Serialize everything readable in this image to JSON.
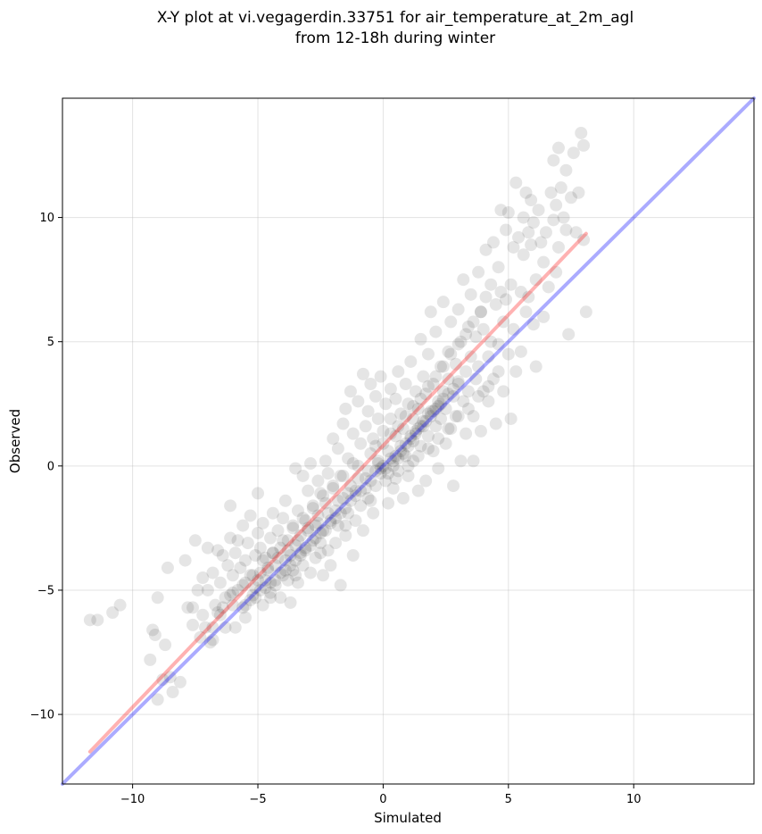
{
  "chart_data": {
    "type": "scatter",
    "title_lines": [
      "X-Y plot at vi.vegagerdin.33751 for air_temperature_at_2m_agl",
      "from 12-18h during winter"
    ],
    "xlabel": "Simulated",
    "ylabel": "Observed",
    "xlim": [
      -12.8,
      14.8
    ],
    "ylim": [
      -12.8,
      14.8
    ],
    "xticks": [
      -10,
      -5,
      0,
      5,
      10
    ],
    "yticks": [
      -10,
      -5,
      0,
      5,
      10
    ],
    "xtick_labels": [
      "−10",
      "−5",
      "0",
      "5",
      "10"
    ],
    "ytick_labels": [
      "−10",
      "−5",
      "0",
      "5",
      "10"
    ],
    "grid": true,
    "point_color": "#000000",
    "point_opacity": 0.1,
    "lines": [
      {
        "role": "regression",
        "color": "#ff0000",
        "opacity": 0.3,
        "x": [
          -11.7,
          8.1
        ],
        "y": [
          -11.5,
          9.35
        ]
      },
      {
        "role": "one-to-one",
        "color": "#0000ff",
        "opacity": 0.33,
        "x": [
          -12.8,
          14.8
        ],
        "y": [
          -12.8,
          14.8
        ]
      }
    ],
    "points": [
      [
        -11.7,
        -6.2
      ],
      [
        -11.4,
        -6.2
      ],
      [
        -10.8,
        -5.9
      ],
      [
        -10.5,
        -5.6
      ],
      [
        -9.3,
        -7.8
      ],
      [
        -9.2,
        -6.6
      ],
      [
        -9.1,
        -6.8
      ],
      [
        -9.0,
        -5.3
      ],
      [
        -9.0,
        -9.4
      ],
      [
        -8.8,
        -8.6
      ],
      [
        -8.7,
        -7.2
      ],
      [
        -8.6,
        -4.1
      ],
      [
        -8.5,
        -8.5
      ],
      [
        -8.4,
        -9.1
      ],
      [
        -8.1,
        -8.7
      ],
      [
        -7.9,
        -3.8
      ],
      [
        -7.8,
        -5.7
      ],
      [
        -7.6,
        -6.4
      ],
      [
        -7.6,
        -5.7
      ],
      [
        -7.5,
        -3.0
      ],
      [
        -7.4,
        -5.0
      ],
      [
        -7.3,
        -6.9
      ],
      [
        -7.2,
        -4.5
      ],
      [
        -7.2,
        -6.0
      ],
      [
        -7.0,
        -3.3
      ],
      [
        -7.0,
        -5.0
      ],
      [
        -6.9,
        -7.1
      ],
      [
        -6.8,
        -6.5
      ],
      [
        -6.8,
        -4.3
      ],
      [
        -6.7,
        -5.6
      ],
      [
        -6.6,
        -3.4
      ],
      [
        -6.5,
        -6.0
      ],
      [
        -6.5,
        -4.7
      ],
      [
        -6.4,
        -3.6
      ],
      [
        -6.3,
        -5.3
      ],
      [
        -6.2,
        -4.0
      ],
      [
        -6.1,
        -2.9
      ],
      [
        -6.1,
        -1.6
      ],
      [
        -6.0,
        -5.6
      ],
      [
        -6.0,
        -4.4
      ],
      [
        -5.9,
        -3.5
      ],
      [
        -5.9,
        -6.5
      ],
      [
        -5.8,
        -3.0
      ],
      [
        -5.8,
        -5.0
      ],
      [
        -5.7,
        -4.1
      ],
      [
        -5.6,
        -2.4
      ],
      [
        -5.6,
        -5.7
      ],
      [
        -5.5,
        -3.8
      ],
      [
        -5.5,
        -4.7
      ],
      [
        -5.4,
        -3.1
      ],
      [
        -5.3,
        -4.4
      ],
      [
        -5.3,
        -2.0
      ],
      [
        -5.2,
        -5.2
      ],
      [
        -5.1,
        -3.6
      ],
      [
        -5.1,
        -4.9
      ],
      [
        -5.0,
        -2.7
      ],
      [
        -5.0,
        -1.1
      ],
      [
        -4.9,
        -4.3
      ],
      [
        -4.9,
        -3.3
      ],
      [
        -4.8,
        -5.6
      ],
      [
        -4.8,
        -2.3
      ],
      [
        -4.7,
        -4.6
      ],
      [
        -4.7,
        -3.7
      ],
      [
        -4.6,
        -4.1
      ],
      [
        -4.5,
        -2.9
      ],
      [
        -4.5,
        -5.1
      ],
      [
        -4.4,
        -3.5
      ],
      [
        -4.4,
        -1.9
      ],
      [
        -4.3,
        -4.8
      ],
      [
        -4.3,
        -4.0
      ],
      [
        -4.2,
        -2.6
      ],
      [
        -4.1,
        -3.3
      ],
      [
        -4.1,
        -5.3
      ],
      [
        -4.0,
        -4.4
      ],
      [
        -4.0,
        -2.1
      ],
      [
        -3.9,
        -3.8
      ],
      [
        -3.9,
        -1.4
      ],
      [
        -3.8,
        -4.6
      ],
      [
        -3.8,
        -3.0
      ],
      [
        -3.7,
        -3.6
      ],
      [
        -3.7,
        -5.5
      ],
      [
        -3.6,
        -2.4
      ],
      [
        -3.6,
        -4.2
      ],
      [
        -3.5,
        -0.1
      ],
      [
        -3.5,
        -3.2
      ],
      [
        -3.4,
        -4.7
      ],
      [
        -3.4,
        -1.8
      ],
      [
        -3.3,
        -3.5
      ],
      [
        -3.3,
        -2.8
      ],
      [
        -3.2,
        -0.4
      ],
      [
        -3.2,
        -4.0
      ],
      [
        -3.1,
        -2.2
      ],
      [
        -3.1,
        -3.3
      ],
      [
        -3.0,
        -1.0
      ],
      [
        -3.0,
        -2.6
      ],
      [
        -2.9,
        0.1
      ],
      [
        -2.9,
        -4.3
      ],
      [
        -2.8,
        -3.0
      ],
      [
        -2.8,
        -1.6
      ],
      [
        -2.7,
        -2.4
      ],
      [
        -2.7,
        -3.7
      ],
      [
        -2.6,
        -0.6
      ],
      [
        -2.6,
        -2.0
      ],
      [
        -2.5,
        -3.1
      ],
      [
        -2.5,
        -1.1
      ],
      [
        -2.4,
        -4.4
      ],
      [
        -2.4,
        -2.6
      ],
      [
        -2.3,
        0.2
      ],
      [
        -2.3,
        -1.5
      ],
      [
        -2.2,
        -3.4
      ],
      [
        -2.2,
        -0.3
      ],
      [
        -2.1,
        -2.2
      ],
      [
        -2.1,
        -4.0
      ],
      [
        -2.0,
        -0.9
      ],
      [
        -2.0,
        1.1
      ],
      [
        -1.9,
        -1.8
      ],
      [
        -1.9,
        -3.1
      ],
      [
        -1.8,
        0.7
      ],
      [
        -1.8,
        -2.4
      ],
      [
        -1.7,
        -4.8
      ],
      [
        -1.7,
        -0.4
      ],
      [
        -1.6,
        1.7
      ],
      [
        -1.6,
        -1.3
      ],
      [
        -1.5,
        -2.8
      ],
      [
        -1.5,
        2.3
      ],
      [
        -1.4,
        0.3
      ],
      [
        -1.4,
        -1.9
      ],
      [
        -1.3,
        -0.8
      ],
      [
        -1.3,
        3.0
      ],
      [
        -1.2,
        -3.6
      ],
      [
        -1.2,
        1.3
      ],
      [
        -1.1,
        -1.0
      ],
      [
        -1.1,
        -2.2
      ],
      [
        -1.0,
        2.6
      ],
      [
        -1.0,
        0.0
      ],
      [
        -0.9,
        -1.6
      ],
      [
        -0.9,
        0.9
      ],
      [
        -0.8,
        3.7
      ],
      [
        -0.8,
        -2.6
      ],
      [
        -0.7,
        1.6
      ],
      [
        -0.7,
        -0.5
      ],
      [
        -0.6,
        2.2
      ],
      [
        -0.6,
        -1.3
      ],
      [
        -0.5,
        0.5
      ],
      [
        -0.5,
        3.3
      ],
      [
        -0.4,
        -1.9
      ],
      [
        -0.4,
        1.1
      ],
      [
        -0.3,
        2.8
      ],
      [
        -0.3,
        -0.8
      ],
      [
        -0.2,
        0.2
      ],
      [
        -0.2,
        1.9
      ],
      [
        -0.1,
        -0.3
      ],
      [
        -0.1,
        3.6
      ],
      [
        0.0,
        0.0
      ],
      [
        0.0,
        1.4
      ],
      [
        0.1,
        -0.6
      ],
      [
        0.1,
        2.5
      ],
      [
        0.2,
        0.6
      ],
      [
        0.2,
        -1.5
      ],
      [
        0.3,
        1.9
      ],
      [
        0.3,
        3.1
      ],
      [
        0.4,
        0.2
      ],
      [
        0.4,
        -0.9
      ],
      [
        0.5,
        1.2
      ],
      [
        0.5,
        2.7
      ],
      [
        0.6,
        -0.2
      ],
      [
        0.6,
        3.8
      ],
      [
        0.7,
        0.8
      ],
      [
        0.7,
        2.1
      ],
      [
        0.8,
        -1.3
      ],
      [
        0.8,
        1.5
      ],
      [
        0.9,
        3.3
      ],
      [
        0.9,
        0.4
      ],
      [
        1.0,
        2.5
      ],
      [
        1.0,
        -0.4
      ],
      [
        1.1,
        1.1
      ],
      [
        1.1,
        4.2
      ],
      [
        1.2,
        1.9
      ],
      [
        1.2,
        0.2
      ],
      [
        1.3,
        3.0
      ],
      [
        1.3,
        1.4
      ],
      [
        1.4,
        -1.0
      ],
      [
        1.4,
        2.3
      ],
      [
        1.5,
        5.1
      ],
      [
        1.5,
        0.8
      ],
      [
        1.6,
        3.6
      ],
      [
        1.6,
        1.8
      ],
      [
        1.7,
        -0.6
      ],
      [
        1.7,
        2.9
      ],
      [
        1.8,
        1.2
      ],
      [
        1.8,
        4.5
      ],
      [
        1.9,
        2.2
      ],
      [
        1.9,
        6.2
      ],
      [
        2.0,
        0.6
      ],
      [
        2.0,
        3.3
      ],
      [
        2.1,
        1.6
      ],
      [
        2.1,
        5.4
      ],
      [
        2.2,
        2.6
      ],
      [
        2.2,
        -0.1
      ],
      [
        2.3,
        4.0
      ],
      [
        2.3,
        1.9
      ],
      [
        2.4,
        3.0
      ],
      [
        2.4,
        6.6
      ],
      [
        2.5,
        2.3
      ],
      [
        2.5,
        0.9
      ],
      [
        2.6,
        4.6
      ],
      [
        2.6,
        3.5
      ],
      [
        2.7,
        1.5
      ],
      [
        2.7,
        5.8
      ],
      [
        2.8,
        2.8
      ],
      [
        2.8,
        -0.8
      ],
      [
        2.9,
        4.1
      ],
      [
        2.9,
        2.0
      ],
      [
        3.0,
        6.3
      ],
      [
        3.0,
        3.3
      ],
      [
        3.1,
        0.2
      ],
      [
        3.1,
        5.0
      ],
      [
        3.2,
        2.6
      ],
      [
        3.2,
        7.5
      ],
      [
        3.3,
        3.8
      ],
      [
        3.3,
        1.3
      ],
      [
        3.4,
        5.6
      ],
      [
        3.4,
        3.0
      ],
      [
        3.5,
        6.9
      ],
      [
        3.5,
        4.4
      ],
      [
        3.6,
        2.0
      ],
      [
        3.6,
        0.2
      ],
      [
        3.7,
        5.2
      ],
      [
        3.7,
        3.5
      ],
      [
        3.8,
        7.8
      ],
      [
        3.8,
        4.0
      ],
      [
        3.9,
        6.2
      ],
      [
        3.9,
        1.4
      ],
      [
        4.0,
        3.0
      ],
      [
        4.0,
        5.5
      ],
      [
        4.1,
        8.7
      ],
      [
        4.1,
        6.8
      ],
      [
        4.2,
        4.4
      ],
      [
        4.2,
        2.6
      ],
      [
        4.3,
        7.3
      ],
      [
        4.3,
        5.0
      ],
      [
        4.4,
        9.0
      ],
      [
        4.4,
        3.5
      ],
      [
        4.5,
        6.5
      ],
      [
        4.5,
        1.7
      ],
      [
        4.6,
        8.0
      ],
      [
        4.6,
        4.9
      ],
      [
        4.7,
        7.0
      ],
      [
        4.7,
        10.3
      ],
      [
        4.8,
        5.8
      ],
      [
        4.8,
        3.0
      ],
      [
        4.9,
        9.5
      ],
      [
        4.9,
        6.7
      ],
      [
        5.0,
        4.5
      ],
      [
        5.0,
        10.2
      ],
      [
        5.1,
        7.3
      ],
      [
        5.1,
        1.9
      ],
      [
        5.2,
        8.8
      ],
      [
        5.2,
        5.5
      ],
      [
        5.3,
        11.4
      ],
      [
        5.3,
        3.8
      ],
      [
        5.4,
        9.2
      ],
      [
        5.5,
        7.0
      ],
      [
        5.5,
        4.6
      ],
      [
        5.6,
        10.0
      ],
      [
        5.6,
        8.5
      ],
      [
        5.7,
        6.2
      ],
      [
        5.7,
        11.0
      ],
      [
        5.8,
        9.4
      ],
      [
        5.8,
        6.8
      ],
      [
        5.9,
        10.7
      ],
      [
        5.9,
        8.9
      ],
      [
        6.0,
        5.7
      ],
      [
        6.0,
        9.8
      ],
      [
        6.1,
        4.0
      ],
      [
        6.1,
        7.5
      ],
      [
        6.2,
        10.3
      ],
      [
        6.3,
        9.0
      ],
      [
        6.4,
        8.2
      ],
      [
        6.4,
        6.0
      ],
      [
        6.5,
        9.4
      ],
      [
        6.6,
        7.2
      ],
      [
        6.7,
        11.0
      ],
      [
        6.8,
        9.9
      ],
      [
        6.8,
        12.3
      ],
      [
        6.9,
        7.8
      ],
      [
        6.9,
        10.5
      ],
      [
        7.0,
        8.8
      ],
      [
        7.0,
        12.8
      ],
      [
        7.1,
        11.2
      ],
      [
        7.2,
        10.0
      ],
      [
        7.3,
        9.5
      ],
      [
        7.3,
        11.9
      ],
      [
        7.4,
        5.3
      ],
      [
        7.5,
        10.8
      ],
      [
        7.6,
        12.6
      ],
      [
        7.7,
        9.4
      ],
      [
        7.8,
        11.0
      ],
      [
        7.9,
        13.4
      ],
      [
        8.0,
        12.9
      ],
      [
        8.0,
        9.1
      ],
      [
        8.1,
        6.2
      ],
      [
        -0.2,
        0.1
      ],
      [
        0.1,
        -0.1
      ],
      [
        -0.1,
        -0.1
      ],
      [
        0.3,
        0.3
      ],
      [
        -0.3,
        -0.2
      ],
      [
        0.5,
        0.4
      ],
      [
        0.7,
        0.6
      ],
      [
        0.9,
        0.9
      ],
      [
        1.1,
        1.2
      ],
      [
        1.3,
        1.3
      ],
      [
        1.5,
        1.6
      ],
      [
        1.7,
        1.8
      ],
      [
        1.9,
        2.0
      ],
      [
        2.1,
        2.3
      ],
      [
        2.3,
        2.5
      ],
      [
        0.2,
        -0.3
      ],
      [
        0.4,
        0.0
      ],
      [
        0.6,
        0.3
      ],
      [
        0.8,
        0.5
      ],
      [
        1.0,
        0.8
      ],
      [
        1.2,
        1.0
      ],
      [
        1.4,
        1.5
      ],
      [
        1.6,
        1.6
      ],
      [
        1.8,
        2.1
      ],
      [
        2.0,
        2.2
      ],
      [
        2.2,
        2.4
      ],
      [
        2.4,
        2.7
      ],
      [
        2.6,
        2.9
      ],
      [
        2.8,
        3.1
      ],
      [
        3.0,
        3.4
      ],
      [
        -0.5,
        -0.6
      ],
      [
        -0.7,
        -0.9
      ],
      [
        -0.9,
        -1.0
      ],
      [
        -1.1,
        -1.2
      ],
      [
        -1.3,
        -1.4
      ],
      [
        -1.5,
        -1.7
      ],
      [
        -1.7,
        -1.9
      ],
      [
        -1.9,
        -2.1
      ],
      [
        -2.1,
        -2.3
      ],
      [
        -2.3,
        -2.6
      ],
      [
        -2.5,
        -2.7
      ],
      [
        -2.7,
        -2.9
      ],
      [
        -2.9,
        -3.2
      ],
      [
        -3.1,
        -3.4
      ],
      [
        -3.3,
        -3.6
      ],
      [
        -3.5,
        -3.8
      ],
      [
        -3.7,
        -4.0
      ],
      [
        -3.9,
        -4.2
      ],
      [
        -4.1,
        -4.3
      ],
      [
        -4.3,
        -4.6
      ],
      [
        -4.5,
        -4.7
      ],
      [
        -4.7,
        -4.9
      ],
      [
        -4.9,
        -5.0
      ],
      [
        -5.1,
        -5.3
      ],
      [
        -5.3,
        -5.4
      ],
      [
        -5.5,
        -5.6
      ],
      [
        -0.6,
        -0.2
      ],
      [
        -1.0,
        -0.5
      ],
      [
        -1.4,
        -1.1
      ],
      [
        -1.8,
        -1.4
      ],
      [
        -2.2,
        -1.9
      ],
      [
        -2.6,
        -2.3
      ],
      [
        -3.0,
        -2.5
      ],
      [
        -3.4,
        -3.0
      ],
      [
        -3.8,
        -3.4
      ],
      [
        -4.2,
        -3.7
      ],
      [
        -4.6,
        -4.2
      ],
      [
        -5.0,
        -4.6
      ],
      [
        -0.3,
        0.8
      ],
      [
        0.0,
        0.9
      ],
      [
        0.3,
        1.3
      ],
      [
        0.6,
        1.6
      ],
      [
        0.9,
        2.0
      ],
      [
        1.2,
        2.4
      ],
      [
        1.5,
        2.7
      ],
      [
        1.8,
        3.2
      ],
      [
        2.1,
        3.6
      ],
      [
        2.4,
        4.0
      ],
      [
        2.7,
        4.5
      ],
      [
        3.0,
        4.9
      ],
      [
        3.3,
        5.3
      ],
      [
        3.6,
        5.8
      ],
      [
        3.9,
        6.2
      ],
      [
        -1.2,
        0.1
      ],
      [
        -1.6,
        -0.4
      ],
      [
        -2.0,
        -0.8
      ],
      [
        -2.4,
        -1.2
      ],
      [
        -2.8,
        -1.7
      ],
      [
        -3.2,
        -2.1
      ],
      [
        -3.6,
        -2.5
      ],
      [
        -4.0,
        -3.0
      ],
      [
        -4.4,
        -3.5
      ],
      [
        -4.8,
        -3.8
      ],
      [
        -5.2,
        -4.4
      ],
      [
        -5.6,
        -4.8
      ],
      [
        -6.0,
        -5.1
      ],
      [
        -6.4,
        -5.7
      ],
      [
        1.0,
        0.0
      ],
      [
        1.4,
        0.4
      ],
      [
        1.8,
        0.7
      ],
      [
        2.2,
        1.1
      ],
      [
        2.6,
        1.5
      ],
      [
        3.0,
        2.0
      ],
      [
        3.4,
        2.3
      ],
      [
        3.8,
        2.8
      ],
      [
        4.2,
        3.2
      ],
      [
        4.6,
        3.8
      ],
      [
        0.5,
        -0.5
      ],
      [
        -0.5,
        -1.4
      ],
      [
        -1.5,
        -2.4
      ],
      [
        -2.5,
        -3.5
      ],
      [
        -3.5,
        -4.4
      ],
      [
        -4.5,
        -5.3
      ],
      [
        -5.5,
        -6.1
      ],
      [
        -6.3,
        -6.5
      ],
      [
        -6.8,
        -7.0
      ],
      [
        -7.1,
        -6.5
      ],
      [
        -6.6,
        -5.9
      ],
      [
        -6.1,
        -5.2
      ]
    ]
  }
}
